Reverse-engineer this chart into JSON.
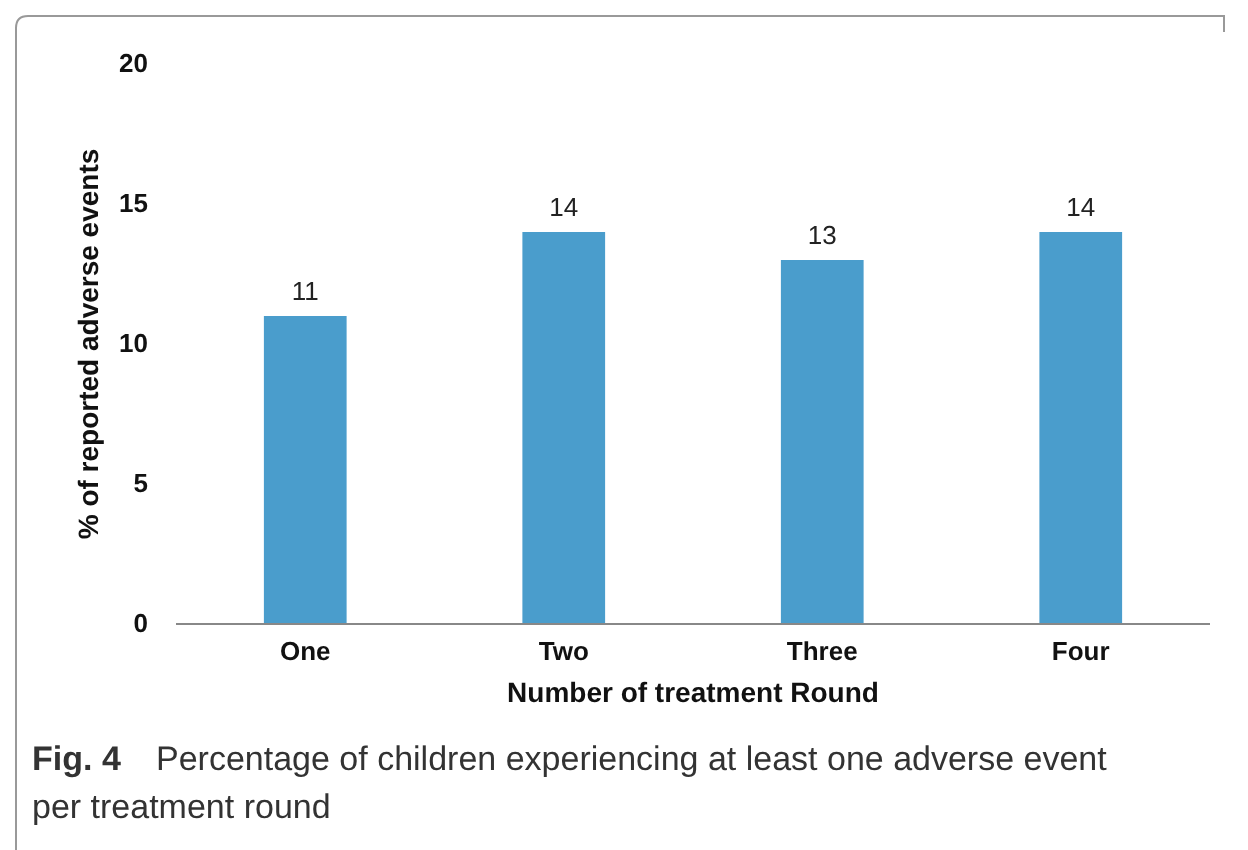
{
  "chart_data": {
    "type": "bar",
    "xlabel": "Number of treatment Round",
    "ylabel": "% of reported adverse events",
    "categories": [
      "One",
      "Two",
      "Three",
      "Four"
    ],
    "values": [
      11,
      14,
      13,
      14
    ],
    "color": "#4a9dcc",
    "ylim": [
      0,
      20
    ],
    "yticks": [
      0,
      5,
      10,
      15,
      20
    ],
    "grid": false,
    "data_labels": true,
    "annotations": [
      "Fig. 4",
      "Percentage of children experiencing at least one adverse event per treatment round"
    ]
  }
}
